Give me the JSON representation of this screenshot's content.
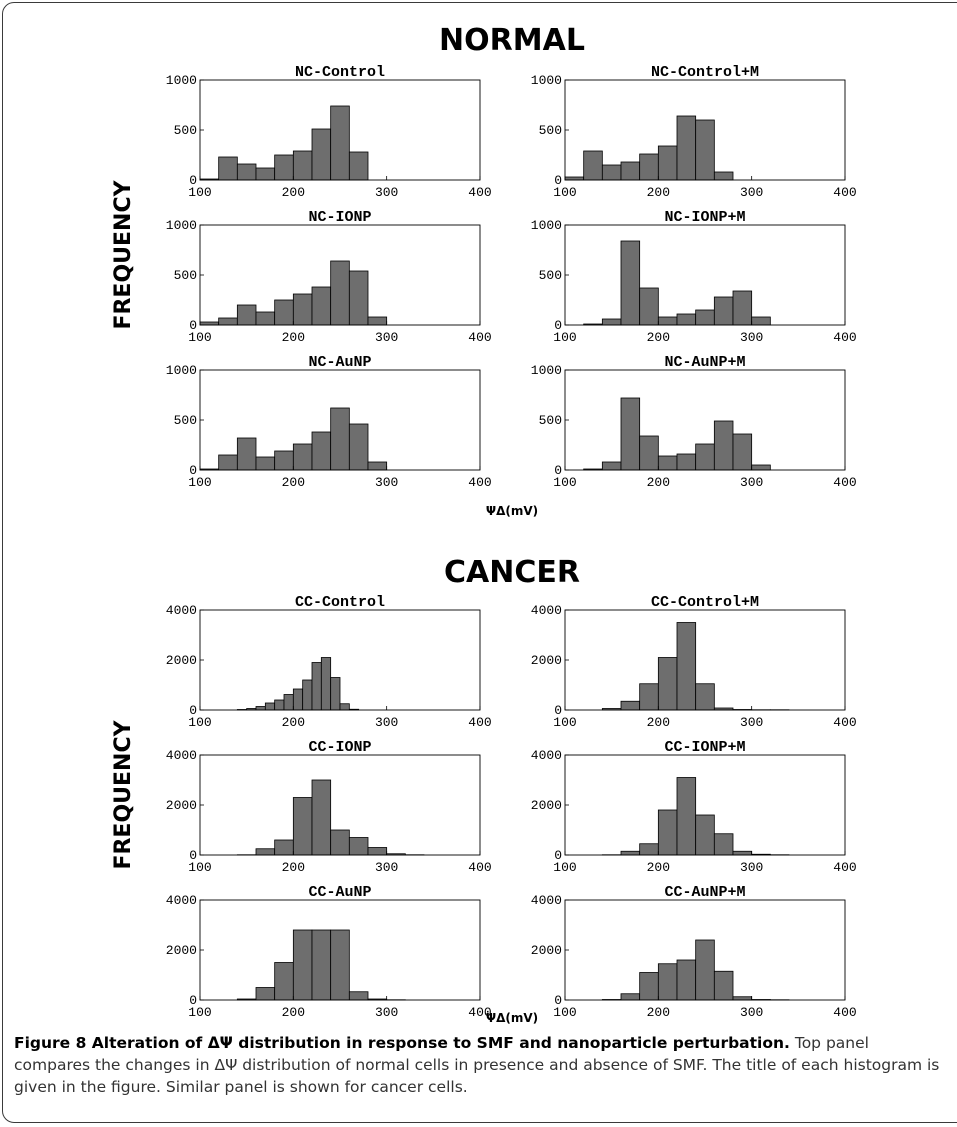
{
  "figure": {
    "normal_title": "NORMAL",
    "cancer_title": "CANCER",
    "ylabel": "FREQUENCY",
    "xlabel": "ΨΔ(mV)"
  },
  "caption": {
    "bold": "Figure 8 Alteration of ΔΨ distribution in response to SMF and nanoparticle perturbation.",
    "text": " Top panel compares the changes in ΔΨ distribution of normal cells in presence and absence of SMF. The title of each histogram is given in the figure. Similar panel is shown for cancer cells."
  },
  "chart_data": [
    {
      "type": "bar",
      "group": "NORMAL",
      "title": "NC-Control",
      "xlim": [
        100,
        400
      ],
      "ylim": [
        0,
        1000
      ],
      "xticks": [
        100,
        200,
        300,
        400
      ],
      "yticks": [
        0,
        500,
        1000
      ],
      "bin_width": 20,
      "bins": [
        {
          "x": 100,
          "y": 10
        },
        {
          "x": 120,
          "y": 230
        },
        {
          "x": 140,
          "y": 160
        },
        {
          "x": 160,
          "y": 120
        },
        {
          "x": 180,
          "y": 250
        },
        {
          "x": 200,
          "y": 290
        },
        {
          "x": 220,
          "y": 510
        },
        {
          "x": 240,
          "y": 740
        },
        {
          "x": 260,
          "y": 280
        }
      ]
    },
    {
      "type": "bar",
      "group": "NORMAL",
      "title": "NC-Control+M",
      "xlim": [
        100,
        400
      ],
      "ylim": [
        0,
        1000
      ],
      "xticks": [
        100,
        200,
        300,
        400
      ],
      "yticks": [
        0,
        500,
        1000
      ],
      "bin_width": 20,
      "bins": [
        {
          "x": 100,
          "y": 30
        },
        {
          "x": 120,
          "y": 290
        },
        {
          "x": 140,
          "y": 150
        },
        {
          "x": 160,
          "y": 180
        },
        {
          "x": 180,
          "y": 260
        },
        {
          "x": 200,
          "y": 340
        },
        {
          "x": 220,
          "y": 640
        },
        {
          "x": 240,
          "y": 600
        },
        {
          "x": 260,
          "y": 80
        }
      ]
    },
    {
      "type": "bar",
      "group": "NORMAL",
      "title": "NC-IONP",
      "xlim": [
        100,
        400
      ],
      "ylim": [
        0,
        1000
      ],
      "xticks": [
        100,
        200,
        300,
        400
      ],
      "yticks": [
        0,
        500,
        1000
      ],
      "bin_width": 20,
      "bins": [
        {
          "x": 100,
          "y": 30
        },
        {
          "x": 120,
          "y": 70
        },
        {
          "x": 140,
          "y": 200
        },
        {
          "x": 160,
          "y": 130
        },
        {
          "x": 180,
          "y": 250
        },
        {
          "x": 200,
          "y": 310
        },
        {
          "x": 220,
          "y": 380
        },
        {
          "x": 240,
          "y": 640
        },
        {
          "x": 260,
          "y": 540
        },
        {
          "x": 280,
          "y": 80
        }
      ]
    },
    {
      "type": "bar",
      "group": "NORMAL",
      "title": "NC-IONP+M",
      "xlim": [
        100,
        400
      ],
      "ylim": [
        0,
        1000
      ],
      "xticks": [
        100,
        200,
        300,
        400
      ],
      "yticks": [
        0,
        500,
        1000
      ],
      "bin_width": 20,
      "bins": [
        {
          "x": 120,
          "y": 10
        },
        {
          "x": 140,
          "y": 60
        },
        {
          "x": 160,
          "y": 840
        },
        {
          "x": 180,
          "y": 370
        },
        {
          "x": 200,
          "y": 80
        },
        {
          "x": 220,
          "y": 110
        },
        {
          "x": 240,
          "y": 150
        },
        {
          "x": 260,
          "y": 280
        },
        {
          "x": 280,
          "y": 340
        },
        {
          "x": 300,
          "y": 80
        }
      ]
    },
    {
      "type": "bar",
      "group": "NORMAL",
      "title": "NC-AuNP",
      "xlim": [
        100,
        400
      ],
      "ylim": [
        0,
        1000
      ],
      "xticks": [
        100,
        200,
        300,
        400
      ],
      "yticks": [
        0,
        500,
        1000
      ],
      "bin_width": 20,
      "bins": [
        {
          "x": 100,
          "y": 10
        },
        {
          "x": 120,
          "y": 150
        },
        {
          "x": 140,
          "y": 320
        },
        {
          "x": 160,
          "y": 130
        },
        {
          "x": 180,
          "y": 190
        },
        {
          "x": 200,
          "y": 260
        },
        {
          "x": 220,
          "y": 380
        },
        {
          "x": 240,
          "y": 620
        },
        {
          "x": 260,
          "y": 460
        },
        {
          "x": 280,
          "y": 80
        }
      ]
    },
    {
      "type": "bar",
      "group": "NORMAL",
      "title": "NC-AuNP+M",
      "xlim": [
        100,
        400
      ],
      "ylim": [
        0,
        1000
      ],
      "xticks": [
        100,
        200,
        300,
        400
      ],
      "yticks": [
        0,
        500,
        1000
      ],
      "bin_width": 20,
      "bins": [
        {
          "x": 120,
          "y": 10
        },
        {
          "x": 140,
          "y": 80
        },
        {
          "x": 160,
          "y": 720
        },
        {
          "x": 180,
          "y": 340
        },
        {
          "x": 200,
          "y": 140
        },
        {
          "x": 220,
          "y": 160
        },
        {
          "x": 240,
          "y": 260
        },
        {
          "x": 260,
          "y": 490
        },
        {
          "x": 280,
          "y": 360
        },
        {
          "x": 300,
          "y": 50
        }
      ]
    },
    {
      "type": "bar",
      "group": "CANCER",
      "title": "CC-Control",
      "xlim": [
        100,
        400
      ],
      "ylim": [
        0,
        4000
      ],
      "xticks": [
        100,
        200,
        300,
        400
      ],
      "yticks": [
        0,
        2000,
        4000
      ],
      "bin_width": 10,
      "bins": [
        {
          "x": 140,
          "y": 20
        },
        {
          "x": 150,
          "y": 60
        },
        {
          "x": 160,
          "y": 140
        },
        {
          "x": 170,
          "y": 280
        },
        {
          "x": 180,
          "y": 400
        },
        {
          "x": 190,
          "y": 620
        },
        {
          "x": 200,
          "y": 840
        },
        {
          "x": 210,
          "y": 1200
        },
        {
          "x": 220,
          "y": 1900
        },
        {
          "x": 230,
          "y": 2100
        },
        {
          "x": 240,
          "y": 1300
        },
        {
          "x": 250,
          "y": 250
        },
        {
          "x": 260,
          "y": 30
        }
      ]
    },
    {
      "type": "bar",
      "group": "CANCER",
      "title": "CC-Control+M",
      "xlim": [
        100,
        400
      ],
      "ylim": [
        0,
        4000
      ],
      "xticks": [
        100,
        200,
        300,
        400
      ],
      "yticks": [
        0,
        2000,
        4000
      ],
      "bin_width": 20,
      "bins": [
        {
          "x": 140,
          "y": 60
        },
        {
          "x": 160,
          "y": 350
        },
        {
          "x": 180,
          "y": 1050
        },
        {
          "x": 200,
          "y": 2100
        },
        {
          "x": 220,
          "y": 3500
        },
        {
          "x": 240,
          "y": 1050
        },
        {
          "x": 260,
          "y": 80
        },
        {
          "x": 280,
          "y": 20
        },
        {
          "x": 300,
          "y": 10
        },
        {
          "x": 320,
          "y": 10
        }
      ]
    },
    {
      "type": "bar",
      "group": "CANCER",
      "title": "CC-IONP",
      "xlim": [
        100,
        400
      ],
      "ylim": [
        0,
        4000
      ],
      "xticks": [
        100,
        200,
        300,
        400
      ],
      "yticks": [
        0,
        2000,
        4000
      ],
      "bin_width": 20,
      "bins": [
        {
          "x": 140,
          "y": 10
        },
        {
          "x": 160,
          "y": 250
        },
        {
          "x": 180,
          "y": 600
        },
        {
          "x": 200,
          "y": 2300
        },
        {
          "x": 220,
          "y": 3000
        },
        {
          "x": 240,
          "y": 1000
        },
        {
          "x": 260,
          "y": 700
        },
        {
          "x": 280,
          "y": 300
        },
        {
          "x": 300,
          "y": 50
        },
        {
          "x": 320,
          "y": 10
        }
      ]
    },
    {
      "type": "bar",
      "group": "CANCER",
      "title": "CC-IONP+M",
      "xlim": [
        100,
        400
      ],
      "ylim": [
        0,
        4000
      ],
      "xticks": [
        100,
        200,
        300,
        400
      ],
      "yticks": [
        0,
        2000,
        4000
      ],
      "bin_width": 20,
      "bins": [
        {
          "x": 140,
          "y": 10
        },
        {
          "x": 160,
          "y": 150
        },
        {
          "x": 180,
          "y": 450
        },
        {
          "x": 200,
          "y": 1800
        },
        {
          "x": 220,
          "y": 3100
        },
        {
          "x": 240,
          "y": 1600
        },
        {
          "x": 260,
          "y": 850
        },
        {
          "x": 280,
          "y": 150
        },
        {
          "x": 300,
          "y": 30
        },
        {
          "x": 320,
          "y": 10
        }
      ]
    },
    {
      "type": "bar",
      "group": "CANCER",
      "title": "CC-AuNP",
      "xlim": [
        100,
        400
      ],
      "ylim": [
        0,
        4000
      ],
      "xticks": [
        100,
        200,
        300,
        400
      ],
      "yticks": [
        0,
        2000,
        4000
      ],
      "bin_width": 20,
      "bins": [
        {
          "x": 140,
          "y": 40
        },
        {
          "x": 160,
          "y": 500
        },
        {
          "x": 180,
          "y": 1500
        },
        {
          "x": 200,
          "y": 2800
        },
        {
          "x": 220,
          "y": 2800
        },
        {
          "x": 240,
          "y": 2800
        },
        {
          "x": 260,
          "y": 330
        },
        {
          "x": 280,
          "y": 40
        },
        {
          "x": 300,
          "y": 10
        }
      ]
    },
    {
      "type": "bar",
      "group": "CANCER",
      "title": "CC-AuNP+M",
      "xlim": [
        100,
        400
      ],
      "ylim": [
        0,
        4000
      ],
      "xticks": [
        100,
        200,
        300,
        400
      ],
      "yticks": [
        0,
        2000,
        4000
      ],
      "bin_width": 20,
      "bins": [
        {
          "x": 140,
          "y": 20
        },
        {
          "x": 160,
          "y": 250
        },
        {
          "x": 180,
          "y": 1100
        },
        {
          "x": 200,
          "y": 1450
        },
        {
          "x": 220,
          "y": 1600
        },
        {
          "x": 240,
          "y": 2400
        },
        {
          "x": 260,
          "y": 1150
        },
        {
          "x": 280,
          "y": 130
        },
        {
          "x": 300,
          "y": 20
        },
        {
          "x": 320,
          "y": 10
        }
      ]
    }
  ]
}
